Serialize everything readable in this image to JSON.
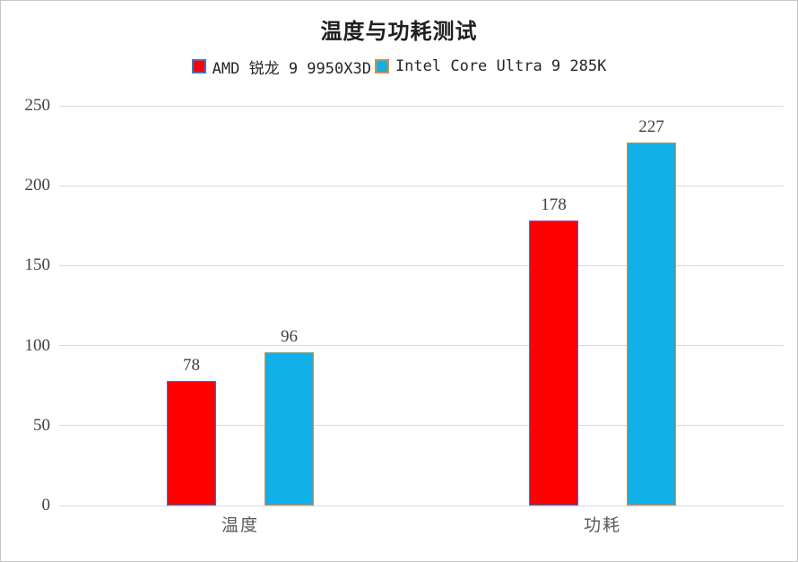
{
  "chart_data": {
    "type": "bar",
    "title": "温度与功耗测试",
    "categories": [
      "温度",
      "功耗"
    ],
    "series": [
      {
        "name": "AMD 锐龙 9 9950X3D",
        "values": [
          78,
          178
        ],
        "fill": "#fe0000",
        "border": "#4472c4"
      },
      {
        "name": "Intel Core Ultra 9 285K",
        "values": [
          96,
          227
        ],
        "fill": "#12b0e8",
        "border": "#de8a3c"
      }
    ],
    "ylim": [
      0,
      250
    ],
    "yticks": [
      0,
      50,
      100,
      150,
      200,
      250
    ],
    "xlabel": "",
    "ylabel": "",
    "grid": "horizontal-only",
    "legend_position": "top-center",
    "value_labels": true,
    "colors": {
      "gridline": "#d9d9d9",
      "tick_text": "#404040",
      "category_text": "#595959",
      "value_text": "#404040",
      "title_text": "#1f1f1f",
      "chart_border": "#c9c7c5",
      "background": "#ffffff"
    }
  }
}
